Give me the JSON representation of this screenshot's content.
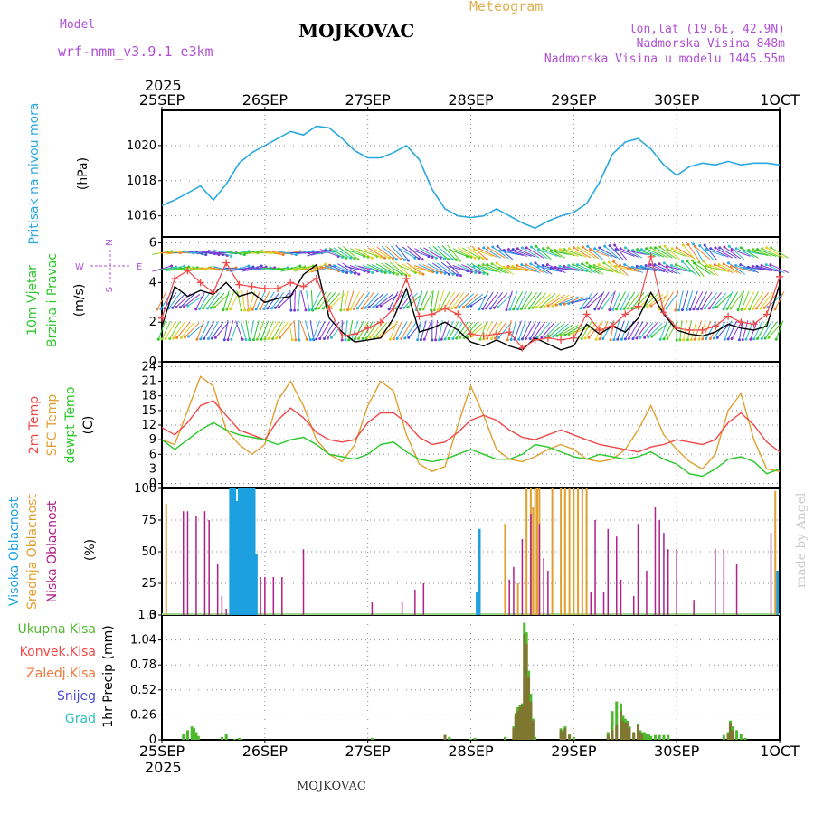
{
  "header": {
    "model_label": "Model",
    "model_name": "wrf-nmm_v3.9.1 e3km",
    "title": "MOJKOVAC",
    "subtitle": "Meteogram",
    "coords": "lon,lat (19.6E, 42.9N)",
    "altitude": "Nadmorska Visina 848m",
    "model_altitude": "Nadmorska Visina u modelu 1445.55m",
    "footer": "MOJKOVAC",
    "credit": "made by Angel"
  },
  "colors": {
    "pressure": "#2aa8e0",
    "temp2m": "#f04848",
    "sfc": "#e0a030",
    "dew": "#28c828",
    "high_cloud": "#1ca0e0",
    "mid_cloud": "#e0a030",
    "low_cloud": "#b0208a",
    "rain_total": "#4cb82c",
    "rain_conv": "#f04848",
    "freezing": "#f07838",
    "snow": "#4a4ad8",
    "hail": "#30c0c0",
    "grid": "#888888"
  },
  "chart_data": [
    {
      "id": "time_axis",
      "type": "line",
      "year": "2025",
      "ticks": [
        "25SEP",
        "26SEP",
        "27SEP",
        "28SEP",
        "29SEP",
        "30SEP",
        "1OCT"
      ],
      "xlim_hours": [
        0,
        144
      ]
    },
    {
      "id": "pressure",
      "type": "line",
      "ylabel": "Pritisak na nivou mora",
      "unit": "(hPa)",
      "ylim": [
        1014.8,
        1022.0
      ],
      "yticks": [
        1016,
        1018,
        1020
      ],
      "x_hours": [
        0,
        3,
        6,
        9,
        12,
        15,
        18,
        21,
        24,
        27,
        30,
        33,
        36,
        39,
        42,
        45,
        48,
        51,
        54,
        57,
        60,
        63,
        66,
        69,
        72,
        75,
        78,
        81,
        84,
        87,
        90,
        93,
        96,
        99,
        102,
        105,
        108,
        111,
        114,
        117,
        120,
        123,
        126,
        129,
        132,
        135,
        138,
        141,
        144
      ],
      "values": [
        1016.6,
        1016.9,
        1017.3,
        1017.7,
        1016.9,
        1017.8,
        1019.0,
        1019.6,
        1020.0,
        1020.4,
        1020.8,
        1020.6,
        1021.1,
        1021.0,
        1020.4,
        1019.7,
        1019.3,
        1019.3,
        1019.6,
        1020.0,
        1019.2,
        1017.5,
        1016.4,
        1016.0,
        1015.9,
        1016.0,
        1016.4,
        1016.0,
        1015.6,
        1015.3,
        1015.7,
        1016.0,
        1016.2,
        1016.7,
        1017.9,
        1019.5,
        1020.2,
        1020.4,
        1019.8,
        1018.9,
        1018.3,
        1018.8,
        1019.0,
        1018.9,
        1019.1,
        1018.9,
        1019.0,
        1019.0,
        1018.9
      ]
    },
    {
      "id": "wind",
      "type": "line",
      "ylabel_1": "10m Vjetar",
      "ylabel_2": "Brzina i Pravac",
      "unit": "(m/s)",
      "ylim": [
        0,
        6.3
      ],
      "yticks": [
        0,
        2,
        4,
        6
      ],
      "compass": {
        "north": "N",
        "south": "S",
        "west": "W",
        "east": "E"
      },
      "x_hours": [
        0,
        3,
        6,
        9,
        12,
        15,
        18,
        21,
        24,
        27,
        30,
        33,
        36,
        39,
        42,
        45,
        48,
        51,
        54,
        57,
        60,
        63,
        66,
        69,
        72,
        75,
        78,
        81,
        84,
        87,
        90,
        93,
        96,
        99,
        102,
        105,
        108,
        111,
        114,
        117,
        120,
        123,
        126,
        129,
        132,
        135,
        138,
        141,
        144
      ],
      "series": [
        {
          "name": "speed_mean",
          "values": [
            1.8,
            3.8,
            3.3,
            3.6,
            3.4,
            4.0,
            3.3,
            3.5,
            3.0,
            3.2,
            3.3,
            4.4,
            4.9,
            2.2,
            1.5,
            1.0,
            1.1,
            1.2,
            2.2,
            3.7,
            1.5,
            1.7,
            2.0,
            1.6,
            1.0,
            0.8,
            1.1,
            0.8,
            0.6,
            1.2,
            0.9,
            0.6,
            0.8,
            1.9,
            1.4,
            1.8,
            1.5,
            2.2,
            3.5,
            2.4,
            1.6,
            1.4,
            1.3,
            1.5,
            1.9,
            1.7,
            1.6,
            1.8,
            3.9
          ]
        },
        {
          "name": "gust",
          "values": [
            2.2,
            4.2,
            4.6,
            4.0,
            3.5,
            5.0,
            3.9,
            3.8,
            3.7,
            3.7,
            4.0,
            3.8,
            4.2,
            2.7,
            1.3,
            1.4,
            1.7,
            2.0,
            2.7,
            4.2,
            2.3,
            2.4,
            2.7,
            2.4,
            1.4,
            1.3,
            1.4,
            1.5,
            0.7,
            1.1,
            1.2,
            1.1,
            1.2,
            2.4,
            1.6,
            1.8,
            2.4,
            2.8,
            5.3,
            2.5,
            1.7,
            1.6,
            1.6,
            1.8,
            2.3,
            2.0,
            1.9,
            2.4,
            4.3
          ]
        }
      ],
      "arrow_rows": [
        1.6,
        3.1,
        4.7,
        5.5
      ],
      "arrow_bottom_directions_deg": [
        200,
        210,
        220,
        200,
        210,
        190,
        160,
        190,
        200,
        210,
        170,
        160,
        200,
        210,
        180,
        200,
        210,
        220,
        200,
        210,
        190,
        180,
        200,
        210,
        220,
        200,
        210,
        190,
        200,
        210,
        220,
        230,
        240,
        210,
        200,
        190,
        200,
        210,
        220,
        200,
        180,
        190,
        200,
        210,
        200,
        190,
        200,
        210,
        200
      ],
      "arrow_top_directions_deg": [
        60,
        60,
        70,
        70,
        80,
        70,
        60,
        60,
        70,
        70,
        60,
        60,
        50,
        90,
        100,
        90,
        90,
        100,
        110,
        100,
        90,
        100,
        110,
        90,
        100,
        270,
        280,
        260,
        270,
        280,
        270,
        260,
        270,
        280,
        270,
        290,
        270,
        260,
        270,
        280,
        270,
        300,
        290,
        270,
        280,
        270,
        260,
        270,
        280
      ]
    },
    {
      "id": "temperature",
      "type": "line",
      "ylabel_1": "2m Temp",
      "ylabel_2": "SFC Temp",
      "ylabel_3": "dewpt Temp",
      "unit": "(C)",
      "ylim": [
        -1,
        25
      ],
      "yticks": [
        0,
        3,
        6,
        9,
        12,
        15,
        18,
        21,
        24
      ],
      "x_hours": [
        0,
        3,
        6,
        9,
        12,
        15,
        18,
        21,
        24,
        27,
        30,
        33,
        36,
        39,
        42,
        45,
        48,
        51,
        54,
        57,
        60,
        63,
        66,
        69,
        72,
        75,
        78,
        81,
        84,
        87,
        90,
        93,
        96,
        99,
        102,
        105,
        108,
        111,
        114,
        117,
        120,
        123,
        126,
        129,
        132,
        135,
        138,
        141,
        144
      ],
      "series": [
        {
          "name": "2m Temp",
          "values": [
            11.5,
            10.0,
            12.5,
            16.0,
            17.0,
            14.0,
            11.0,
            10.0,
            9.0,
            13.0,
            15.5,
            13.5,
            10.5,
            9.0,
            8.5,
            9.0,
            12.5,
            14.5,
            14.5,
            12.5,
            9.5,
            8.0,
            8.5,
            10.5,
            13.0,
            14.0,
            13.0,
            11.0,
            9.5,
            9.0,
            10.0,
            11.0,
            10.0,
            9.0,
            8.0,
            7.5,
            7.0,
            6.5,
            7.5,
            8.0,
            9.0,
            8.5,
            8.0,
            9.0,
            12.5,
            14.5,
            12.0,
            8.5,
            6.5
          ]
        },
        {
          "name": "SFC Temp",
          "values": [
            9.0,
            8.0,
            15.0,
            22.0,
            20.0,
            11.0,
            8.0,
            6.0,
            8.0,
            17.0,
            21.0,
            16.0,
            9.0,
            6.0,
            4.5,
            8.0,
            16.0,
            21.0,
            19.0,
            10.0,
            4.0,
            2.5,
            3.5,
            12.0,
            20.0,
            14.0,
            7.0,
            5.0,
            4.5,
            5.5,
            7.0,
            8.0,
            7.0,
            5.0,
            4.5,
            5.0,
            7.0,
            11.0,
            16.0,
            10.0,
            7.0,
            4.5,
            3.0,
            6.0,
            15.0,
            18.5,
            9.0,
            3.0,
            2.5
          ]
        },
        {
          "name": "dewpt Temp",
          "values": [
            9.0,
            7.0,
            9.0,
            11.0,
            12.5,
            11.0,
            10.0,
            9.5,
            9.0,
            8.0,
            9.0,
            9.5,
            8.0,
            6.0,
            5.5,
            5.0,
            6.0,
            8.0,
            8.5,
            6.5,
            5.0,
            4.5,
            5.0,
            6.0,
            7.0,
            6.0,
            5.0,
            5.0,
            6.0,
            8.0,
            7.5,
            6.5,
            5.5,
            5.0,
            6.0,
            5.5,
            5.0,
            5.5,
            6.5,
            5.0,
            4.0,
            2.0,
            1.5,
            3.0,
            5.0,
            5.5,
            4.5,
            2.0,
            3.0
          ]
        }
      ]
    },
    {
      "id": "cloud",
      "type": "bar",
      "ylabel_1": "Visoka Oblacnost",
      "ylabel_2": "Srednja Oblacnost",
      "ylabel_3": "Niska Oblacnost",
      "unit": "(%)",
      "ylim": [
        0,
        100
      ],
      "yticks": [
        0,
        25,
        50,
        75,
        100
      ],
      "high": {
        "x_hours": [
          16,
          16.5,
          17,
          17.5,
          18,
          18.5,
          19,
          19.5,
          20,
          20.5,
          21,
          21.5,
          22,
          73.5,
          74,
          143.5
        ],
        "values": [
          100,
          100,
          100,
          90,
          100,
          100,
          100,
          100,
          100,
          100,
          100,
          100,
          48,
          18,
          68,
          35
        ]
      },
      "mid": {
        "x_hours": [
          1,
          80,
          83,
          85,
          86,
          86.5,
          87,
          87.5,
          88,
          91,
          93,
          94,
          95,
          96,
          97,
          98,
          99,
          143
        ],
        "values": [
          88,
          72,
          25,
          100,
          100,
          85,
          100,
          100,
          100,
          100,
          100,
          100,
          100,
          100,
          100,
          100,
          100,
          98
        ]
      },
      "low": {
        "x_hours": [
          5,
          6,
          8,
          10,
          11,
          13,
          14,
          15,
          23,
          24,
          26,
          28,
          33,
          49,
          56,
          59,
          61,
          81,
          82,
          84,
          86,
          88,
          89,
          90,
          100,
          101,
          103,
          104,
          106,
          107,
          110,
          111,
          113,
          115,
          116,
          117,
          118,
          120,
          124,
          129,
          131,
          134,
          142
        ],
        "values": [
          82,
          82,
          78,
          82,
          75,
          40,
          15,
          5,
          30,
          30,
          30,
          30,
          52,
          10,
          10,
          20,
          25,
          28,
          38,
          60,
          80,
          72,
          45,
          35,
          18,
          75,
          18,
          68,
          62,
          28,
          15,
          72,
          35,
          85,
          75,
          65,
          52,
          52,
          12,
          52,
          52,
          40,
          65
        ]
      }
    },
    {
      "id": "precip",
      "type": "bar",
      "ylabel": "1hr Precip (mm)",
      "ylim": [
        0,
        1.3
      ],
      "yticks": [
        0,
        0.26,
        0.52,
        0.78,
        1.04,
        1.3
      ],
      "legend": [
        "Ukupna Kisa",
        "Konvek.Kisa",
        "Zaledj.Kisa",
        "Snijeg",
        "Grad"
      ],
      "x_hours": [
        5,
        6,
        7,
        7.5,
        8,
        8.5,
        14,
        15,
        17,
        18,
        18.5,
        49,
        66,
        67,
        72,
        73,
        80,
        82,
        82.5,
        83,
        83.5,
        84,
        84.5,
        85,
        85.5,
        86,
        86.5,
        87,
        93,
        93.5,
        94,
        95,
        96,
        104,
        105,
        106,
        107,
        107.5,
        108,
        108.5,
        109,
        110,
        111,
        111.5,
        112,
        112.5,
        113,
        113.5,
        114,
        115,
        116,
        117,
        118,
        131,
        132,
        132.5,
        133,
        134,
        135,
        136
      ],
      "total": [
        0.06,
        0.1,
        0.14,
        0.12,
        0.08,
        0.04,
        0.03,
        0.06,
        0.01,
        0.02,
        0.01,
        0.02,
        0.05,
        0.03,
        0.01,
        0.02,
        0.03,
        0.14,
        0.28,
        0.34,
        0.36,
        0.38,
        1.22,
        1.12,
        0.72,
        0.48,
        0.22,
        0.03,
        0.12,
        0.1,
        0.14,
        0.06,
        0.03,
        0.08,
        0.3,
        0.4,
        0.38,
        0.25,
        0.22,
        0.2,
        0.14,
        0.08,
        0.16,
        0.1,
        0.08,
        0.08,
        0.06,
        0.06,
        0.04,
        0.05,
        0.05,
        0.05,
        0.05,
        0.05,
        0.08,
        0.2,
        0.14,
        0.1,
        0.06,
        0.02
      ],
      "convective": [
        0,
        0,
        0,
        0,
        0,
        0,
        0,
        0,
        0,
        0,
        0,
        0,
        0.05,
        0,
        0,
        0,
        0,
        0.12,
        0.25,
        0.3,
        0.34,
        0.36,
        1.1,
        1.0,
        0.65,
        0.4,
        0.2,
        0,
        0.1,
        0.08,
        0.12,
        0.05,
        0,
        0.05,
        0.1,
        0.15,
        0.3,
        0.2,
        0.18,
        0.18,
        0.12,
        0.08,
        0.15,
        0.08,
        0.06,
        0,
        0,
        0,
        0,
        0,
        0,
        0,
        0,
        0,
        0.06,
        0.18,
        0.1,
        0,
        0,
        0
      ]
    }
  ]
}
